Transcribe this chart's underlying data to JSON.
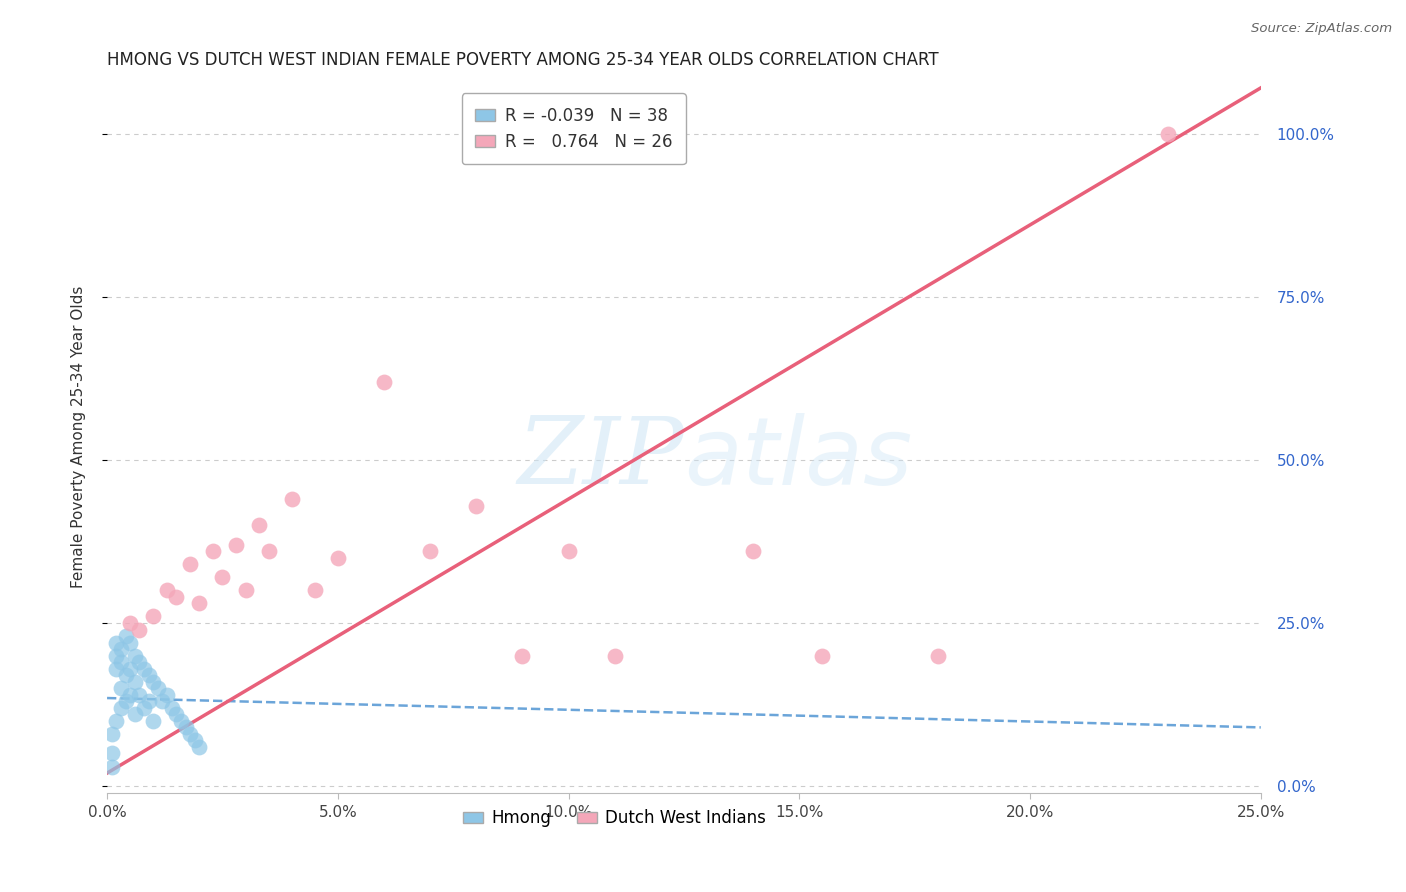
{
  "title": "HMONG VS DUTCH WEST INDIAN FEMALE POVERTY AMONG 25-34 YEAR OLDS CORRELATION CHART",
  "source": "Source: ZipAtlas.com",
  "ylabel": "Female Poverty Among 25-34 Year Olds",
  "xlim": [
    0.0,
    0.25
  ],
  "ylim": [
    -0.01,
    1.08
  ],
  "ytick_values": [
    0.0,
    0.25,
    0.5,
    0.75,
    1.0
  ],
  "ytick_labels": [
    "0.0%",
    "25.0%",
    "50.0%",
    "75.0%",
    "100.0%"
  ],
  "xtick_values": [
    0.0,
    0.05,
    0.1,
    0.15,
    0.2,
    0.25
  ],
  "xtick_labels": [
    "0.0%",
    "5.0%",
    "10.0%",
    "15.0%",
    "20.0%",
    "25.0%"
  ],
  "hmong_R": "-0.039",
  "hmong_N": "38",
  "dwi_R": "0.764",
  "dwi_N": "26",
  "hmong_color": "#8ec6e6",
  "dwi_color": "#f4a7b9",
  "hmong_line_color": "#5b9bd5",
  "dwi_line_color": "#e8607a",
  "hmong_x": [
    0.001,
    0.001,
    0.001,
    0.002,
    0.002,
    0.002,
    0.002,
    0.003,
    0.003,
    0.003,
    0.003,
    0.004,
    0.004,
    0.004,
    0.005,
    0.005,
    0.005,
    0.006,
    0.006,
    0.006,
    0.007,
    0.007,
    0.008,
    0.008,
    0.009,
    0.009,
    0.01,
    0.01,
    0.011,
    0.012,
    0.013,
    0.014,
    0.015,
    0.016,
    0.017,
    0.018,
    0.019,
    0.02
  ],
  "hmong_y": [
    0.03,
    0.05,
    0.08,
    0.22,
    0.2,
    0.18,
    0.1,
    0.21,
    0.19,
    0.15,
    0.12,
    0.23,
    0.17,
    0.13,
    0.22,
    0.18,
    0.14,
    0.2,
    0.16,
    0.11,
    0.19,
    0.14,
    0.18,
    0.12,
    0.17,
    0.13,
    0.16,
    0.1,
    0.15,
    0.13,
    0.14,
    0.12,
    0.11,
    0.1,
    0.09,
    0.08,
    0.07,
    0.06
  ],
  "dwi_x": [
    0.005,
    0.007,
    0.01,
    0.013,
    0.015,
    0.018,
    0.02,
    0.023,
    0.025,
    0.028,
    0.03,
    0.033,
    0.035,
    0.04,
    0.045,
    0.05,
    0.06,
    0.07,
    0.08,
    0.09,
    0.1,
    0.11,
    0.14,
    0.155,
    0.18,
    0.23
  ],
  "dwi_y": [
    0.25,
    0.24,
    0.26,
    0.3,
    0.29,
    0.34,
    0.28,
    0.36,
    0.32,
    0.37,
    0.3,
    0.4,
    0.36,
    0.44,
    0.3,
    0.35,
    0.62,
    0.36,
    0.43,
    0.2,
    0.36,
    0.2,
    0.36,
    0.2,
    0.2,
    1.0
  ]
}
